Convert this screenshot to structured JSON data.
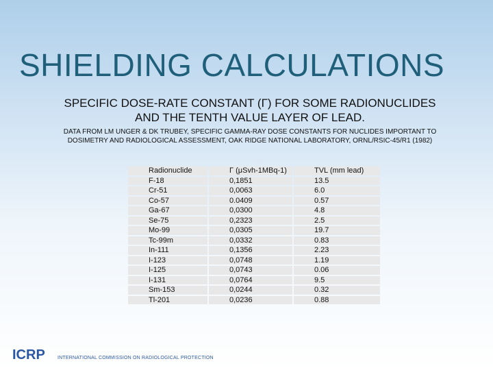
{
  "slide": {
    "title": "SHIELDING CALCULATIONS",
    "subtitle_line1": "SPECIFIC DOSE-RATE CONSTANT (Γ) FOR SOME RADIONUCLIDES",
    "subtitle_line2": "AND THE TENTH VALUE LAYER OF LEAD.",
    "source_line1": "DATA FROM LM UNGER & DK TRUBEY, SPECIFIC GAMMA-RAY DOSE CONSTANTS FOR NUCLIDES IMPORTANT TO",
    "source_line2": "DOSIMETRY AND RADIOLOGICAL ASSESSMENT, OAK RIDGE NATIONAL LABORATORY, ORNL/RSIC-45/R1 (1982)"
  },
  "table": {
    "headers": [
      "Radionuclide",
      "Γ  (μSvh-1MBq-1)",
      "TVL (mm lead)"
    ],
    "rows": [
      [
        "F-18",
        "0,1851",
        "13.5"
      ],
      [
        "Cr-51",
        "0,0063",
        "6.0"
      ],
      [
        "Co-57",
        "0.0409",
        "0.57"
      ],
      [
        "Ga-67",
        "0,0300",
        "4.8"
      ],
      [
        "Se-75",
        "0,2323",
        "2.5"
      ],
      [
        "Mo-99",
        "0,0305",
        "19.7"
      ],
      [
        "Tc-99m",
        "0,0332",
        "0.83"
      ],
      [
        "In-111",
        "0,1356",
        "2.23"
      ],
      [
        "I-123",
        "0,0748",
        "1.19"
      ],
      [
        "I-125",
        "0,0743",
        "0.06"
      ],
      [
        "I-131",
        "0,0764",
        "9.5"
      ],
      [
        "Sm-153",
        "0,0244",
        "0.32"
      ],
      [
        "Tl-201",
        "0,0236",
        "0.88"
      ]
    ]
  },
  "footer": {
    "logo_text": "ICRP",
    "organization": "INTERNATIONAL COMMISSION ON RADIOLOGICAL PROTECTION",
    "brand_color": "#2a57a4"
  }
}
